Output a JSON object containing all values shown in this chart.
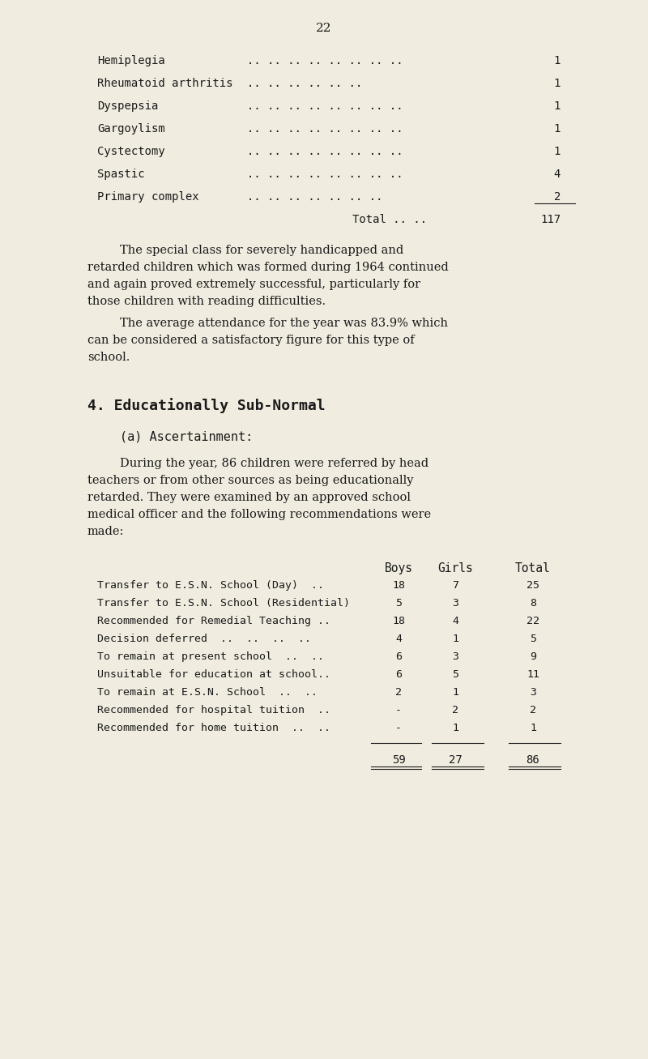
{
  "page_number": "22",
  "bg_color": "#f0ece0",
  "text_color": "#1a1a1a",
  "section1_rows": [
    {
      "label": "Hemiplegia",
      "dots": ".. .. .. .. .. .. .. ..",
      "value": "1"
    },
    {
      "label": "Rheumatoid arthritis",
      "dots": ".. .. .. .. .. ..",
      "value": "1"
    },
    {
      "label": "Dyspepsia",
      "dots": ".. .. .. .. .. .. .. ..",
      "value": "1"
    },
    {
      "label": "Gargoylism",
      "dots": ".. .. .. .. .. .. .. ..",
      "value": "1"
    },
    {
      "label": "Cystectomy",
      "dots": ".. .. .. .. .. .. .. ..",
      "value": "1"
    },
    {
      "label": "Spastic",
      "dots": ".. .. .. .. .. .. .. ..",
      "value": "4"
    },
    {
      "label": "Primary complex",
      "dots": ".. .. .. .. .. .. ..",
      "value": "2"
    }
  ],
  "total_label": "Total .. ..",
  "total_value": "117",
  "para1": "The special class for severely handicapped and\nretarded children which was formed during 1964 continued\nand again proved extremely successful, particularly for\nthose children with reading difficulties.",
  "para2": "The average attendance for the year was 83.9% which\ncan be considered a satisfactory figure for this type of\nschool.",
  "section_heading": "4. Educationally Sub-Normal",
  "sub_heading": "(a) Ascertainment:",
  "para3": "During the year, 86 children were referred by head\nteachers or from other sources as being educationally\nretarded. They were examined by an approved school\nmedical officer and the following recommendations were\nmade:",
  "table_headers": [
    "Boys",
    "Girls",
    "Total"
  ],
  "table_rows": [
    {
      "label": "Transfer to E.S.N. School (Day)  ..",
      "boys": "18",
      "girls": "7",
      "total": "25"
    },
    {
      "label": "Transfer to E.S.N. School (Residential)",
      "boys": "5",
      "girls": "3",
      "total": "8"
    },
    {
      "label": "Recommended for Remedial Teaching ..",
      "boys": "18",
      "girls": "4",
      "total": "22"
    },
    {
      "label": "Decision deferred  ..  ..  ..  ..",
      "boys": "4",
      "girls": "1",
      "total": "5"
    },
    {
      "label": "To remain at present school  ..  ..",
      "boys": "6",
      "girls": "3",
      "total": "9"
    },
    {
      "label": "Unsuitable for education at school..",
      "boys": "6",
      "girls": "5",
      "total": "11"
    },
    {
      "label": "To remain at E.S.N. School  ..  ..",
      "boys": "2",
      "girls": "1",
      "total": "3"
    },
    {
      "label": "Recommended for hospital tuition  ..",
      "boys": "-",
      "girls": "2",
      "total": "2"
    },
    {
      "label": "Recommended for home tuition  ..  ..",
      "boys": "-",
      "girls": "1",
      "total": "1"
    }
  ],
  "table_totals": {
    "boys": "59",
    "girls": "27",
    "total": "86"
  }
}
